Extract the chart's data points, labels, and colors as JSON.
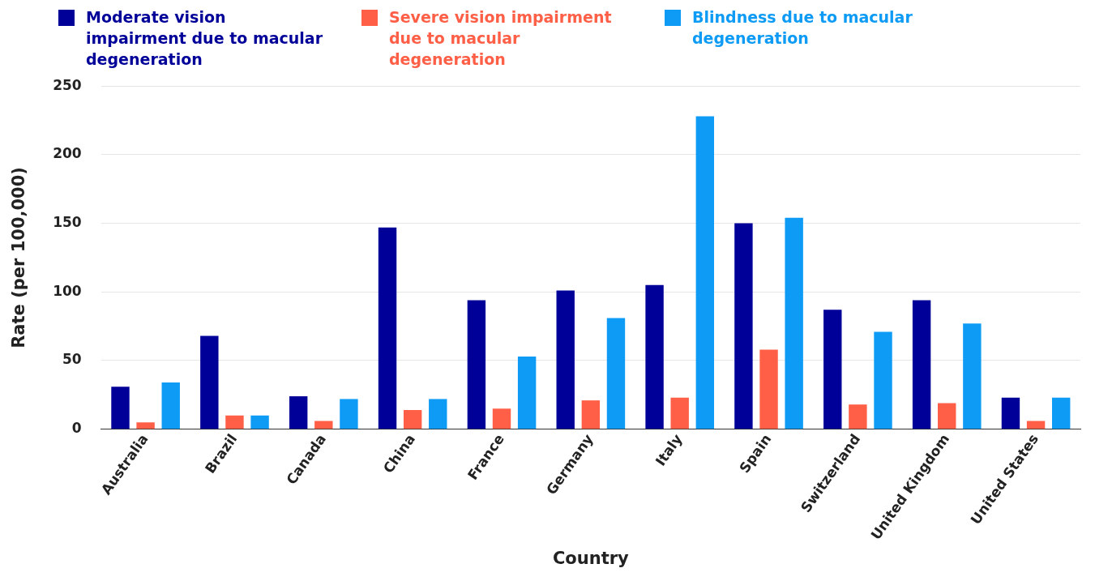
{
  "chart_data": {
    "type": "bar",
    "xlabel": "Country",
    "ylabel": "Rate (per 100,000)",
    "categories": [
      "Australia",
      "Brazil",
      "Canada",
      "China",
      "France",
      "Germany",
      "Italy",
      "Spain",
      "Switzerland",
      "United Kingdom",
      "United States"
    ],
    "series": [
      {
        "name": "Moderate vision impairment due to macular degeneration",
        "color": "#000099",
        "values": [
          31,
          68,
          24,
          147,
          94,
          101,
          105,
          150,
          87,
          94,
          23
        ]
      },
      {
        "name": "Severe vision impairment due to macular degeneration",
        "color": "#ff5f46",
        "values": [
          5,
          10,
          6,
          14,
          15,
          21,
          23,
          58,
          18,
          19,
          6
        ]
      },
      {
        "name": "Blindness due to macular degeneration",
        "color": "#0d9bf5",
        "values": [
          34,
          10,
          22,
          22,
          53,
          81,
          228,
          154,
          71,
          77,
          23
        ]
      }
    ],
    "ylim": [
      0,
      250
    ],
    "yticks": [
      0,
      50,
      100,
      150,
      200,
      250
    ],
    "grid": "y",
    "legend": "top left"
  }
}
